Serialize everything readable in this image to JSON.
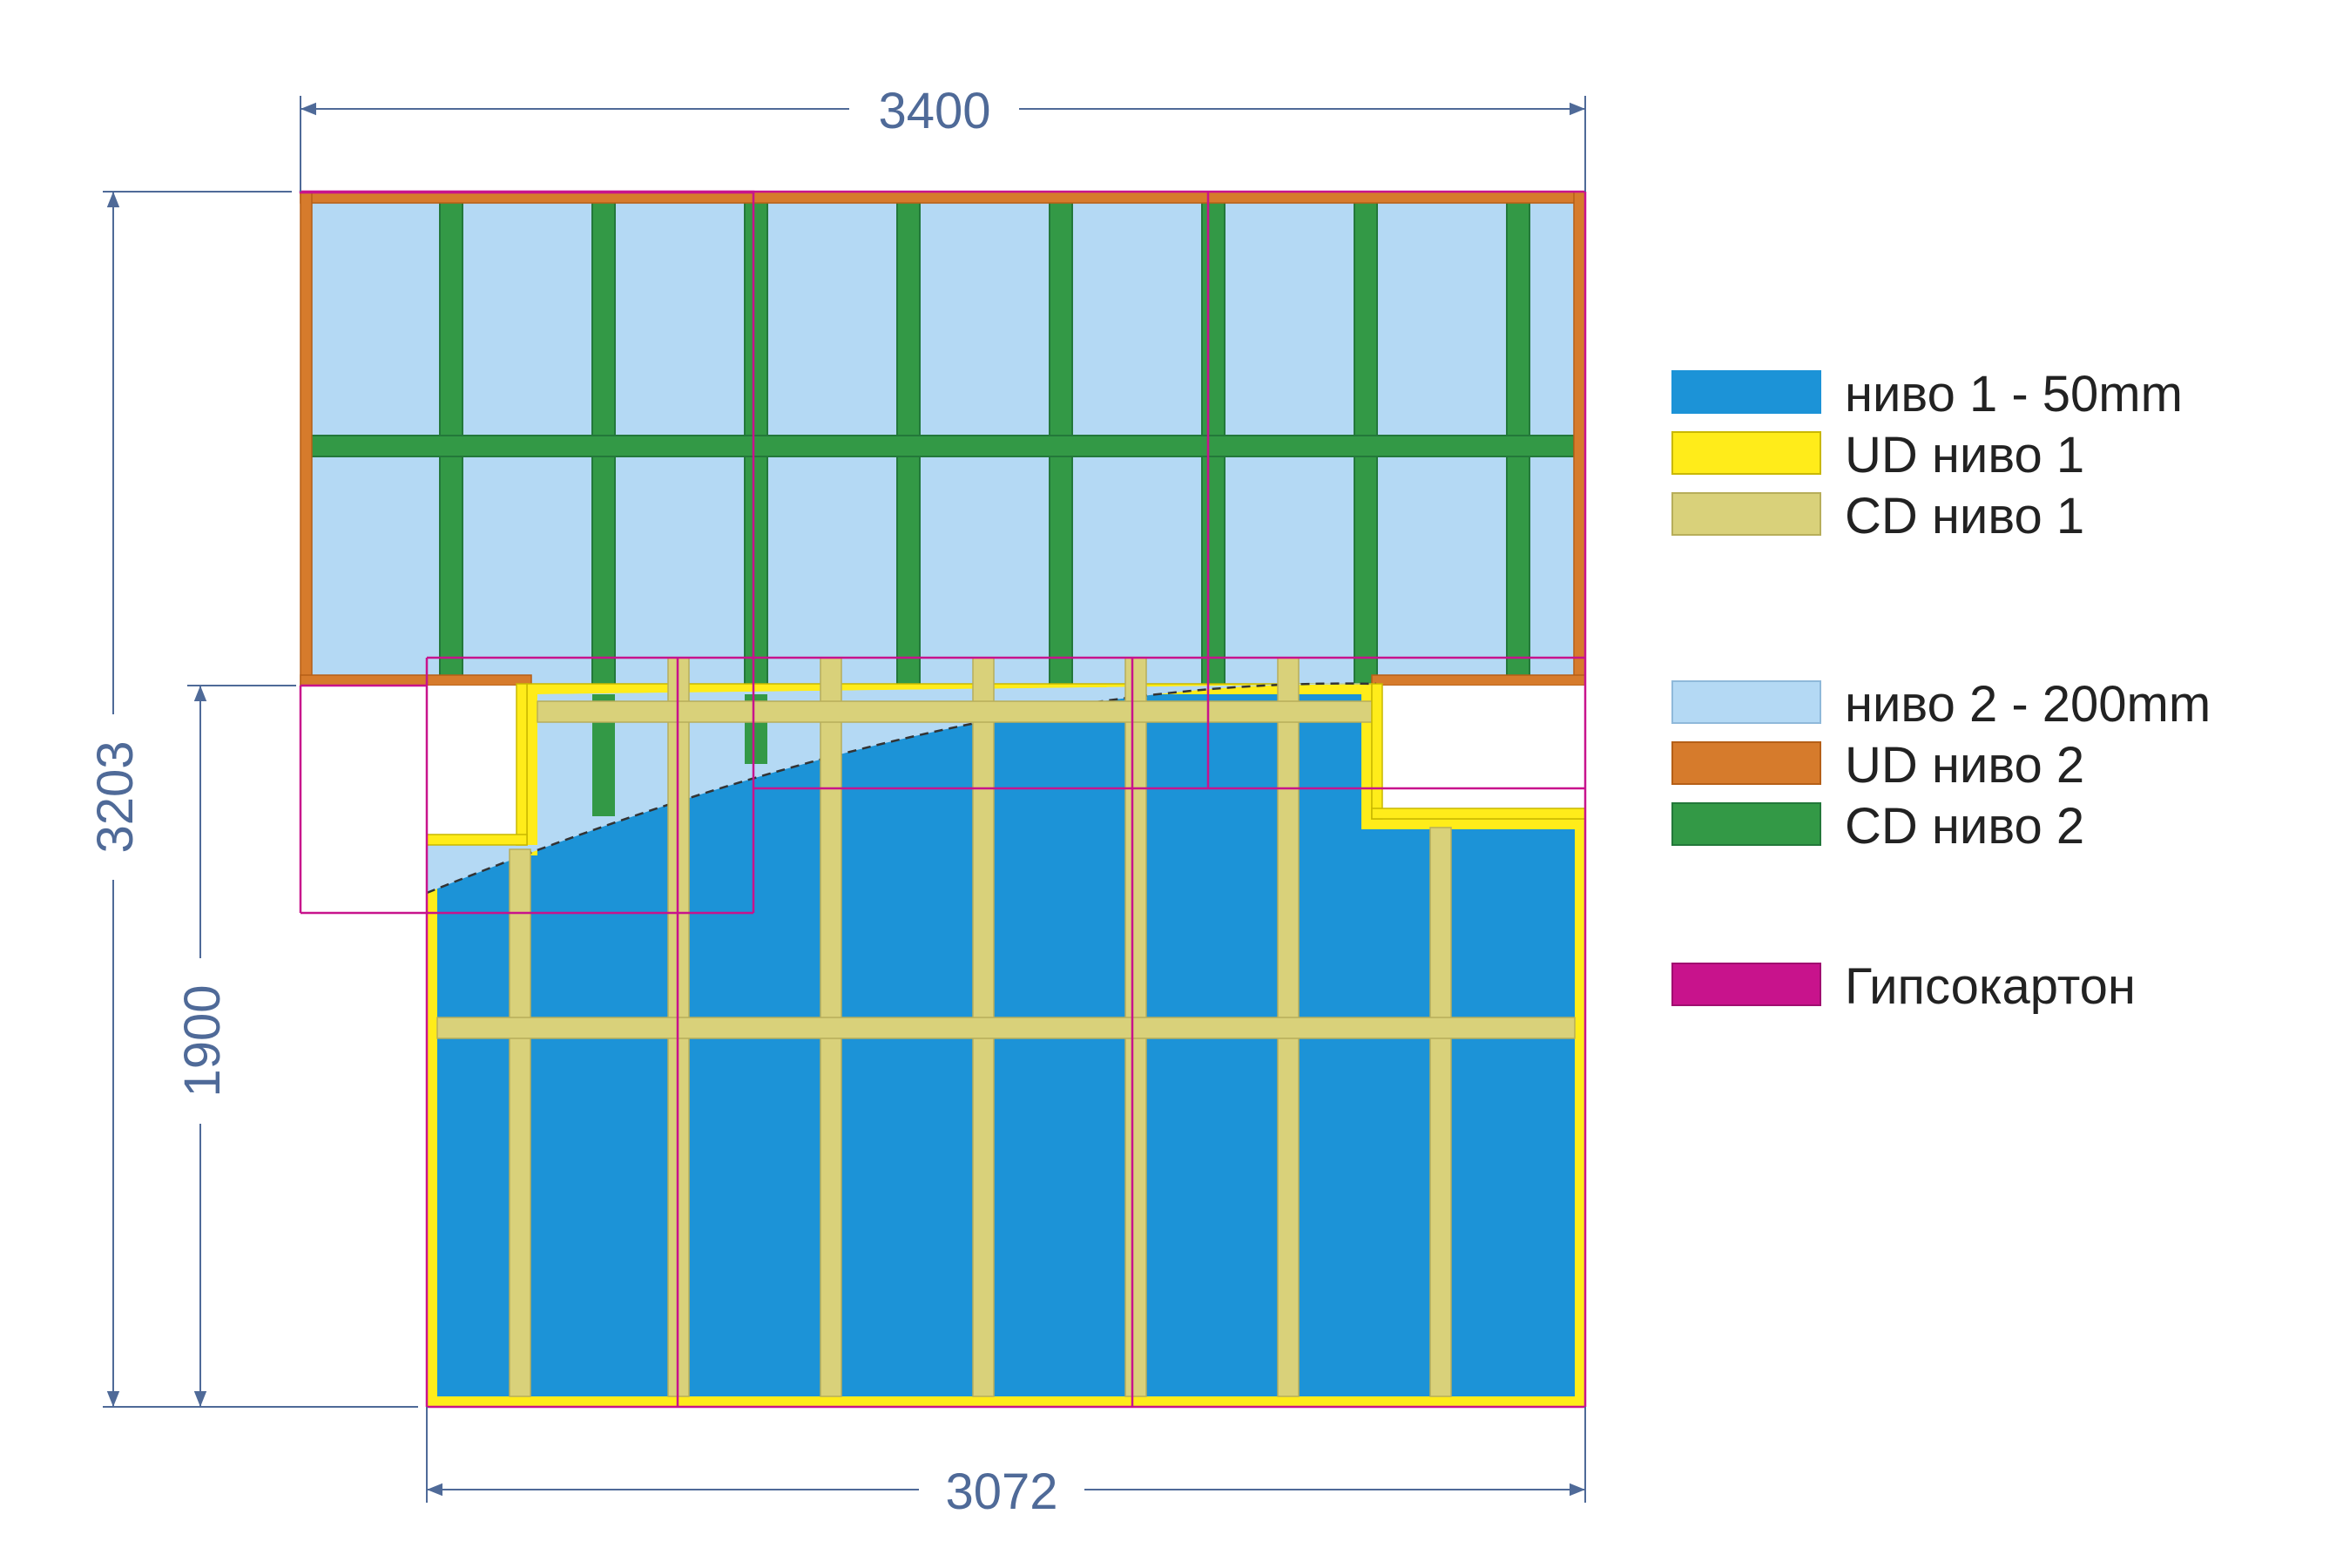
{
  "dimensions": {
    "width_top": "3400",
    "width_bottom": "3072",
    "height_total": "3203",
    "height_lower": "1900"
  },
  "legend": [
    {
      "label": "ниво 1 - 50mm",
      "color": "#1c93d7",
      "stroke": "#1c93d7"
    },
    {
      "label": "UD ниво 1",
      "color": "#ffec1a",
      "stroke": "#c9b800"
    },
    {
      "label": "CD ниво 1",
      "color": "#d9d17a",
      "stroke": "#b7ae5a"
    },
    {
      "label": "ниво 2  - 200mm",
      "color": "#b4d9f4",
      "stroke": "#8fb9da"
    },
    {
      "label": "UD ниво 2",
      "color": "#d67b2c",
      "stroke": "#b55f17"
    },
    {
      "label": "CD ниво 2",
      "color": "#339946",
      "stroke": "#23783a"
    },
    {
      "label": "Гипсокартон",
      "color": "#c8138c",
      "stroke": "#a00f70"
    }
  ],
  "colors": {
    "dimension_line": "#4f6a98",
    "boundary": "#c8138c"
  }
}
